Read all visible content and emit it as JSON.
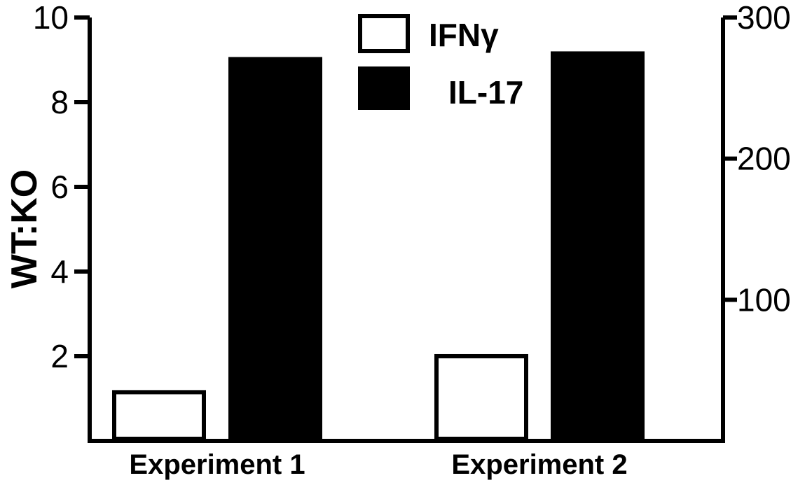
{
  "chart_data": {
    "type": "bar",
    "title": "",
    "xlabel": "",
    "ylabel": "WT:KO",
    "categories": [
      "Experiment 1",
      "Experiment 2"
    ],
    "series": [
      {
        "name": "IFNγ",
        "axis": "left",
        "values": [
          1.2,
          2.05
        ],
        "fill": "#ffffff",
        "stroke": "#000000"
      },
      {
        "name": "IL-17",
        "axis": "right",
        "values": [
          272,
          276
        ],
        "fill": "#000000",
        "stroke": "#000000"
      }
    ],
    "left_axis": {
      "ylim": [
        0,
        10
      ],
      "ticks": [
        2,
        4,
        6,
        8,
        10
      ],
      "tick_labels": [
        "2",
        "4",
        "6",
        "8",
        "10"
      ]
    },
    "right_axis": {
      "ylim": [
        0,
        300
      ],
      "ticks": [
        100,
        200,
        300
      ],
      "tick_labels": [
        "100",
        "200",
        "300"
      ]
    },
    "grid": false,
    "legend_position": "top-center"
  }
}
